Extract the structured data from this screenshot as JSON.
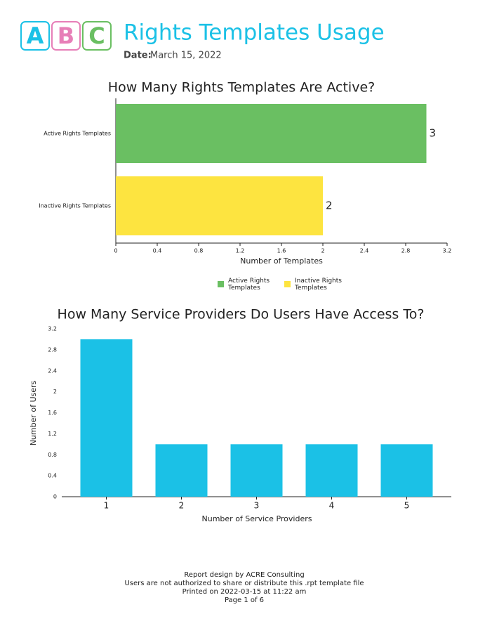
{
  "header": {
    "logo": [
      "A",
      "B",
      "C"
    ],
    "title": "Rights Templates Usage",
    "date_label": "Date:",
    "date": "March 15, 2022"
  },
  "chart_data": [
    {
      "type": "hbar",
      "title": "How Many Rights Templates Are Active?",
      "categories": [
        "Active Rights Templates",
        "Inactive Rights Templates"
      ],
      "values": [
        3,
        2
      ],
      "colors": [
        "#6abf62",
        "#fde440"
      ],
      "xlabel": "Number of Templates",
      "xlim": [
        0,
        3.2
      ],
      "xticks": [
        0,
        0.4,
        0.8,
        1.2,
        1.6,
        2,
        2.4,
        2.8,
        3.2
      ],
      "legend": "bottom"
    },
    {
      "type": "bar",
      "title": "How Many Service Providers Do Users Have Access To?",
      "categories": [
        "1",
        "2",
        "3",
        "4",
        "5"
      ],
      "values": [
        3,
        1,
        1,
        1,
        1
      ],
      "color": "#1bc1e6",
      "xlabel": "Number of Service Providers",
      "ylabel": "Number of Users",
      "ylim": [
        0,
        3.2
      ],
      "yticks": [
        0,
        0.4,
        0.8,
        1.2,
        1.6,
        2,
        2.4,
        2.8,
        3.2
      ]
    }
  ],
  "footer": {
    "lines": [
      "Report design by ACRE Consulting",
      "Users are not authorized to share or distribute this .rpt template file",
      "Printed on 2022-03-15 at 11:22 am",
      "Page 1 of 6"
    ]
  }
}
